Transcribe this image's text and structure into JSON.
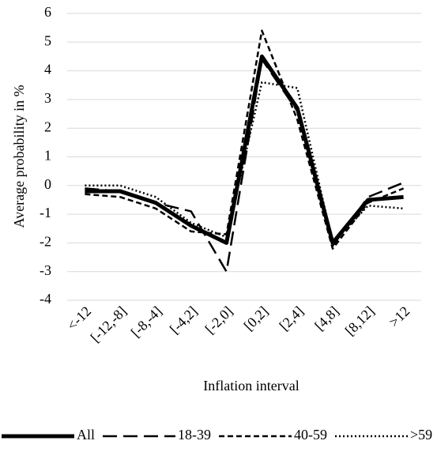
{
  "chart_data": {
    "type": "line",
    "x_label": "Inflation interval",
    "y_label": "Average probability in %",
    "categories": [
      "<-12",
      "[-12,-8]",
      "[-8,-4]",
      "[-4,2]",
      "[-2,0]",
      "[0,2]",
      "[2,4]",
      "[4,8]",
      "[8,12]",
      ">12"
    ],
    "series": [
      {
        "name": "All",
        "color": "#000000",
        "style": "solid",
        "values": [
          -0.2,
          -0.2,
          -0.6,
          -1.4,
          -2.0,
          4.5,
          2.7,
          -2.0,
          -0.5,
          -0.4
        ]
      },
      {
        "name": "18-39",
        "color": "#000000",
        "style": "long-dash",
        "values": [
          -0.1,
          -0.2,
          -0.6,
          -0.9,
          -3.0,
          4.4,
          2.6,
          -2.1,
          -0.4,
          0.1
        ]
      },
      {
        "name": "40-59",
        "color": "#000000",
        "style": "dash",
        "values": [
          -0.3,
          -0.4,
          -0.8,
          -1.6,
          -1.7,
          5.4,
          2.3,
          -2.2,
          -0.6,
          -0.1
        ]
      },
      {
        "name": ">59",
        "color": "#000000",
        "style": "dot",
        "values": [
          0.0,
          0.0,
          -0.4,
          -1.3,
          -1.8,
          3.6,
          3.4,
          -2.0,
          -0.7,
          -0.8
        ]
      }
    ],
    "ylim": [
      -4,
      6
    ],
    "yticks": [
      -4,
      -3,
      -2,
      -1,
      0,
      1,
      2,
      3,
      4,
      5,
      6
    ],
    "grid": true,
    "legend": "bottom"
  }
}
